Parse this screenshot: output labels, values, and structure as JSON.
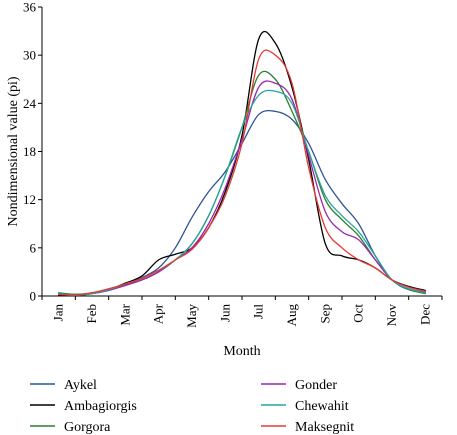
{
  "chart_data": {
    "type": "line",
    "xlabel": "Month",
    "ylabel": "Nondimensional value (pi)",
    "ylim": [
      0,
      36
    ],
    "yticks": [
      0,
      6,
      12,
      18,
      24,
      30,
      36
    ],
    "categories": [
      "Jan",
      "Feb",
      "Mar",
      "Apr",
      "May",
      "Jun",
      "Jul",
      "Aug",
      "Sep",
      "Oct",
      "Nov",
      "Dec"
    ],
    "grid": false,
    "legend": "bottom",
    "x": [
      1,
      1.5,
      2,
      2.5,
      3,
      3.5,
      4,
      4.5,
      5,
      5.5,
      6,
      6.5,
      7,
      7.5,
      8,
      8.5,
      9,
      9.5,
      10,
      10.5,
      11,
      11.5,
      12
    ],
    "series": [
      {
        "name": "Aykel",
        "color": "#2f5597",
        "values": [
          0.3,
          0.2,
          0.3,
          0.7,
          1.4,
          2.3,
          3.5,
          6.0,
          9.8,
          13.0,
          15.5,
          19.0,
          22.6,
          23.0,
          22.0,
          19.0,
          14.5,
          11.5,
          9.0,
          5.0,
          2.0,
          0.8,
          0.4
        ]
      },
      {
        "name": "Ambagiorgis",
        "color": "#000000",
        "values": [
          0.1,
          0.1,
          0.3,
          0.8,
          1.6,
          2.5,
          4.5,
          5.2,
          6.0,
          8.5,
          13.0,
          20.0,
          32.0,
          31.5,
          26.0,
          17.0,
          6.5,
          5.0,
          4.5,
          3.5,
          2.0,
          1.2,
          0.7
        ]
      },
      {
        "name": "Gorgora",
        "color": "#2e7d32",
        "values": [
          0.4,
          0.2,
          0.4,
          0.8,
          1.4,
          2.0,
          3.0,
          4.5,
          6.5,
          10.0,
          15.0,
          21.0,
          27.5,
          27.0,
          23.0,
          18.0,
          12.0,
          9.5,
          7.5,
          4.5,
          2.0,
          0.8,
          0.3
        ]
      },
      {
        "name": "Gonder",
        "color": "#9c27b0",
        "values": [
          0.2,
          0.1,
          0.3,
          0.7,
          1.3,
          2.0,
          3.0,
          4.5,
          6.0,
          9.0,
          13.5,
          19.5,
          26.0,
          26.5,
          24.5,
          17.5,
          10.5,
          8.0,
          7.0,
          4.5,
          2.0,
          0.9,
          0.5
        ]
      },
      {
        "name": "Chewahit",
        "color": "#26a69a",
        "values": [
          0.3,
          0.1,
          0.3,
          0.8,
          1.5,
          2.2,
          3.2,
          4.5,
          6.5,
          10.0,
          15.0,
          21.0,
          25.0,
          25.5,
          24.0,
          18.0,
          12.5,
          10.0,
          8.0,
          5.0,
          2.0,
          0.9,
          0.4
        ]
      },
      {
        "name": "Maksegnit",
        "color": "#e53935",
        "values": [
          0.2,
          0.1,
          0.4,
          0.9,
          1.5,
          2.2,
          3.2,
          4.5,
          5.8,
          8.5,
          12.5,
          19.0,
          29.5,
          30.0,
          26.5,
          16.0,
          8.5,
          6.0,
          4.5,
          3.5,
          2.0,
          1.1,
          0.6
        ]
      }
    ]
  }
}
